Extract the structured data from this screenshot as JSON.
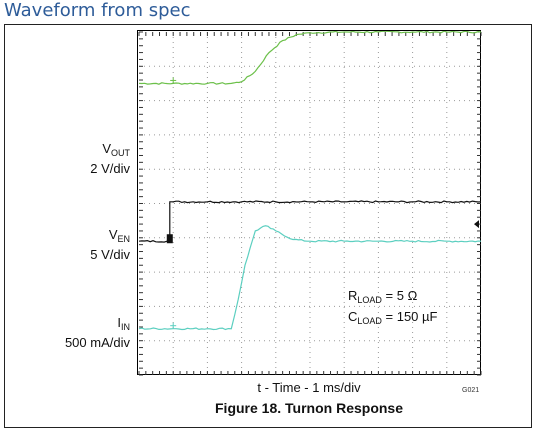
{
  "page_title": "Waveform from spec",
  "chart_data": {
    "type": "line",
    "title": "Figure 18. Turnon Response",
    "xlabel": "t - Time - 1 ms/div",
    "figure_code": "G021",
    "grid": true,
    "x_divisions": 10,
    "y_divisions": 10,
    "channels": [
      {
        "name": "VOUT",
        "name_main": "V",
        "name_sub": "OUT",
        "scale": "2 V/div",
        "color": "#6cc04a"
      },
      {
        "name": "VEN",
        "name_main": "V",
        "name_sub": "EN",
        "scale": "5 V/div",
        "color": "#111111"
      },
      {
        "name": "IIN",
        "name_main": "I",
        "name_sub": "IN",
        "scale": "500 mA/div",
        "color": "#5ccfc0"
      }
    ],
    "annotations": [
      {
        "main": "R",
        "sub": "LOAD",
        "value": " = 5 Ω"
      },
      {
        "main": "C",
        "sub": "LOAD",
        "value": " = 150 µF"
      }
    ],
    "series": [
      {
        "channel": "VOUT",
        "x": [
          0,
          1,
          2,
          2.7,
          3.0,
          3.4,
          3.8,
          4.2,
          4.6,
          5.0,
          6,
          7,
          8,
          9,
          10
        ],
        "y": [
          8.5,
          8.5,
          8.5,
          8.5,
          8.55,
          8.85,
          9.4,
          9.75,
          9.92,
          9.98,
          10,
          10,
          10,
          10,
          10
        ]
      },
      {
        "channel": "VEN",
        "x": [
          0,
          0.9,
          0.9,
          1,
          2,
          3,
          4,
          5,
          6,
          7,
          8,
          9,
          10
        ],
        "y": [
          3.9,
          3.9,
          5.05,
          5.05,
          5.05,
          5.05,
          5.05,
          5.05,
          5.05,
          5.05,
          5.05,
          5.05,
          5.05
        ]
      },
      {
        "channel": "IIN",
        "x": [
          0,
          1,
          2,
          2.7,
          2.9,
          3.1,
          3.4,
          3.7,
          4.0,
          4.5,
          5.0,
          6,
          7,
          8,
          9,
          10
        ],
        "y": [
          1.35,
          1.35,
          1.35,
          1.35,
          2.2,
          3.2,
          4.2,
          4.35,
          4.2,
          3.95,
          3.9,
          3.9,
          3.9,
          3.9,
          3.9,
          3.9
        ]
      }
    ]
  }
}
